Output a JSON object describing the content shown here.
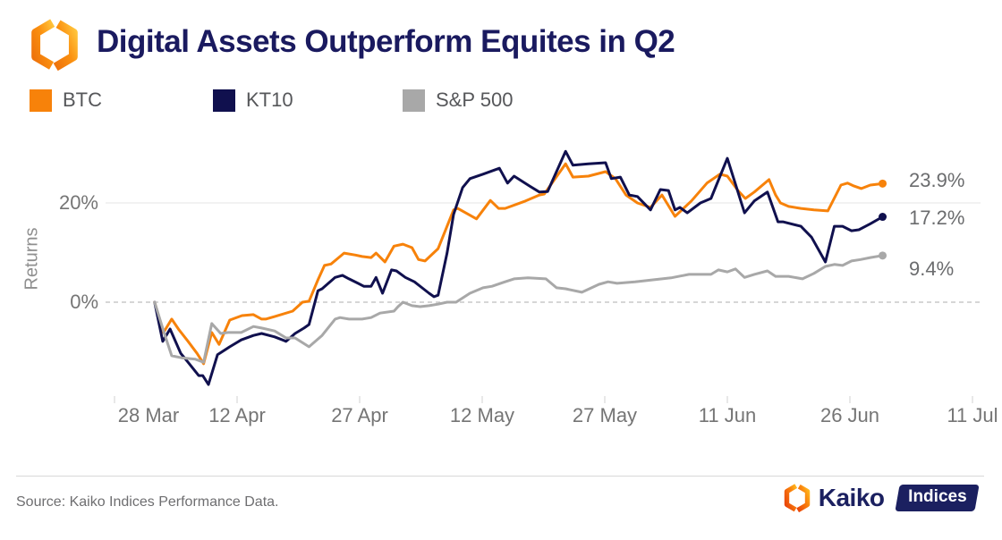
{
  "header": {
    "title": "Digital Assets Outperform Equites in Q2"
  },
  "legend": [
    {
      "label": "BTC",
      "color": "#F7820A"
    },
    {
      "label": "KT10",
      "color": "#10104E"
    },
    {
      "label": "S&P 500",
      "color": "#A8A8A8"
    }
  ],
  "footer": {
    "source": "Source: Kaiko Indices Performance Data.",
    "brand_name": "Kaiko",
    "badge_label": "Indices"
  },
  "colors": {
    "accent_orange": "#F7820A",
    "navy": "#10104E",
    "gray": "#A8A8A8",
    "grid_solid": "#EDEDED",
    "grid_dashed": "#C8C8C8",
    "axis_text": "#757575"
  },
  "chart_data": {
    "type": "line",
    "title": "Digital Assets Outperform Equites in Q2",
    "xlabel": "",
    "ylabel": "Returns",
    "x_unit": "days since 28 Mar",
    "ylim": [
      -20,
      33
    ],
    "grid": "y-only",
    "legend_position": "top",
    "x_ticks": [
      {
        "d": 0,
        "label": "28 Mar"
      },
      {
        "d": 15,
        "label": "12 Apr"
      },
      {
        "d": 30,
        "label": "27 Apr"
      },
      {
        "d": 45,
        "label": "12 May"
      },
      {
        "d": 60,
        "label": "27 May"
      },
      {
        "d": 75,
        "label": "11 Jun"
      },
      {
        "d": 90,
        "label": "26 Jun"
      },
      {
        "d": 105,
        "label": "11 Jul"
      }
    ],
    "y_ticks": [
      {
        "v": 20,
        "label": "20%",
        "style": "solid"
      },
      {
        "v": 0,
        "label": "0%",
        "style": "dashed"
      }
    ],
    "series": [
      {
        "name": "BTC",
        "color": "#F7820A",
        "end_value": 23.9,
        "end_label": "23.9%",
        "end_label_dy": 7,
        "points": [
          [
            4.9,
            0
          ],
          [
            6.0,
            -6.1
          ],
          [
            7.0,
            -3.4
          ],
          [
            7.9,
            -5.6
          ],
          [
            9.0,
            -7.9
          ],
          [
            10.1,
            -10.3
          ],
          [
            10.9,
            -12.4
          ],
          [
            11.9,
            -6.1
          ],
          [
            12.8,
            -8.5
          ],
          [
            14.1,
            -3.6
          ],
          [
            15.6,
            -2.7
          ],
          [
            17.0,
            -2.5
          ],
          [
            18.0,
            -3.4
          ],
          [
            18.5,
            -3.4
          ],
          [
            19.6,
            -2.9
          ],
          [
            21.8,
            -1.8
          ],
          [
            23.0,
            0.0
          ],
          [
            23.8,
            0.2
          ],
          [
            24.9,
            4.5
          ],
          [
            25.7,
            7.4
          ],
          [
            26.5,
            7.7
          ],
          [
            27.6,
            9.2
          ],
          [
            28.1,
            9.9
          ],
          [
            29.5,
            9.5
          ],
          [
            30.3,
            9.2
          ],
          [
            31.4,
            9.0
          ],
          [
            32.0,
            9.9
          ],
          [
            33.1,
            8.1
          ],
          [
            34.2,
            11.3
          ],
          [
            35.3,
            11.7
          ],
          [
            36.4,
            11.0
          ],
          [
            37.2,
            8.6
          ],
          [
            38.0,
            8.3
          ],
          [
            39.6,
            10.8
          ],
          [
            40.7,
            15.3
          ],
          [
            41.5,
            18.6
          ],
          [
            42.0,
            18.9
          ],
          [
            44.3,
            16.8
          ],
          [
            46.0,
            20.5
          ],
          [
            47.0,
            18.9
          ],
          [
            47.8,
            18.9
          ],
          [
            50.3,
            20.4
          ],
          [
            52.0,
            21.6
          ],
          [
            52.6,
            21.8
          ],
          [
            55.2,
            27.9
          ],
          [
            56.1,
            25.2
          ],
          [
            58.0,
            25.4
          ],
          [
            60.1,
            26.3
          ],
          [
            61.3,
            24.9
          ],
          [
            62.6,
            21.6
          ],
          [
            64.0,
            20.0
          ],
          [
            65.6,
            19.1
          ],
          [
            67.0,
            21.6
          ],
          [
            68.6,
            17.3
          ],
          [
            70.6,
            20.4
          ],
          [
            72.5,
            24.0
          ],
          [
            74.1,
            25.8
          ],
          [
            75.0,
            25.4
          ],
          [
            76.3,
            22.5
          ],
          [
            77.2,
            20.9
          ],
          [
            78.3,
            22.2
          ],
          [
            80.1,
            24.7
          ],
          [
            80.9,
            21.6
          ],
          [
            81.5,
            20.0
          ],
          [
            82.5,
            19.3
          ],
          [
            84.0,
            18.9
          ],
          [
            85.6,
            18.6
          ],
          [
            87.3,
            18.4
          ],
          [
            88.9,
            23.6
          ],
          [
            89.7,
            24.0
          ],
          [
            90.5,
            23.4
          ],
          [
            91.4,
            22.9
          ],
          [
            92.5,
            23.6
          ],
          [
            94.0,
            23.9
          ]
        ]
      },
      {
        "name": "KT10",
        "color": "#10104E",
        "end_value": 17.2,
        "end_label": "17.2%",
        "end_label_dy": 7,
        "points": [
          [
            4.9,
            0
          ],
          [
            5.9,
            -7.9
          ],
          [
            6.8,
            -5.4
          ],
          [
            8.1,
            -10.3
          ],
          [
            9.0,
            -12.1
          ],
          [
            10.3,
            -14.8
          ],
          [
            10.8,
            -14.8
          ],
          [
            11.5,
            -16.6
          ],
          [
            12.6,
            -10.6
          ],
          [
            14.1,
            -9.0
          ],
          [
            15.5,
            -7.6
          ],
          [
            17.0,
            -6.7
          ],
          [
            18.0,
            -6.3
          ],
          [
            19.6,
            -7.0
          ],
          [
            21.0,
            -7.9
          ],
          [
            22.1,
            -6.3
          ],
          [
            23.2,
            -5.2
          ],
          [
            23.8,
            -4.5
          ],
          [
            24.9,
            2.3
          ],
          [
            25.4,
            2.7
          ],
          [
            27.0,
            5.0
          ],
          [
            27.9,
            5.4
          ],
          [
            28.7,
            4.7
          ],
          [
            29.8,
            3.8
          ],
          [
            30.5,
            3.2
          ],
          [
            31.4,
            3.2
          ],
          [
            32.0,
            5.0
          ],
          [
            32.8,
            1.8
          ],
          [
            33.9,
            6.5
          ],
          [
            34.5,
            6.3
          ],
          [
            35.6,
            5.0
          ],
          [
            36.7,
            4.1
          ],
          [
            37.8,
            2.7
          ],
          [
            38.5,
            1.8
          ],
          [
            39.1,
            1.1
          ],
          [
            39.6,
            1.4
          ],
          [
            40.7,
            9.9
          ],
          [
            41.5,
            17.7
          ],
          [
            42.6,
            23.1
          ],
          [
            43.5,
            24.9
          ],
          [
            45.1,
            25.8
          ],
          [
            47.1,
            27.0
          ],
          [
            48.1,
            24.0
          ],
          [
            48.9,
            25.4
          ],
          [
            50.8,
            23.4
          ],
          [
            52.0,
            22.2
          ],
          [
            53.0,
            22.3
          ],
          [
            55.2,
            30.4
          ],
          [
            56.1,
            27.6
          ],
          [
            58.0,
            27.9
          ],
          [
            60.1,
            28.1
          ],
          [
            60.8,
            24.9
          ],
          [
            61.9,
            25.2
          ],
          [
            63.0,
            21.6
          ],
          [
            64.0,
            21.3
          ],
          [
            65.6,
            18.6
          ],
          [
            66.8,
            22.7
          ],
          [
            67.8,
            22.5
          ],
          [
            68.6,
            18.6
          ],
          [
            69.2,
            19.1
          ],
          [
            70.1,
            18.0
          ],
          [
            71.7,
            20.0
          ],
          [
            73.0,
            20.9
          ],
          [
            75.0,
            29.0
          ],
          [
            77.1,
            18.0
          ],
          [
            78.3,
            20.4
          ],
          [
            79.9,
            22.2
          ],
          [
            81.2,
            16.2
          ],
          [
            81.8,
            16.2
          ],
          [
            84.0,
            15.3
          ],
          [
            85.3,
            13.1
          ],
          [
            87.0,
            8.1
          ],
          [
            88.1,
            15.3
          ],
          [
            89.1,
            15.3
          ],
          [
            90.2,
            14.4
          ],
          [
            91.1,
            14.6
          ],
          [
            92.5,
            15.8
          ],
          [
            94.0,
            17.2
          ]
        ]
      },
      {
        "name": "S&P 500",
        "color": "#A8A8A8",
        "end_value": 9.4,
        "end_label": "9.4%",
        "end_label_dy": 20,
        "points": [
          [
            4.9,
            0
          ],
          [
            6.0,
            -5.8
          ],
          [
            7.0,
            -10.8
          ],
          [
            8.2,
            -11.2
          ],
          [
            9.9,
            -11.5
          ],
          [
            10.9,
            -12.1
          ],
          [
            11.9,
            -4.3
          ],
          [
            13.0,
            -6.3
          ],
          [
            13.9,
            -6.1
          ],
          [
            15.5,
            -6.1
          ],
          [
            17.0,
            -4.9
          ],
          [
            18.0,
            -5.2
          ],
          [
            19.6,
            -5.8
          ],
          [
            21.0,
            -7.2
          ],
          [
            22.1,
            -7.2
          ],
          [
            23.8,
            -9.0
          ],
          [
            25.4,
            -6.7
          ],
          [
            27.0,
            -3.4
          ],
          [
            27.6,
            -3.1
          ],
          [
            28.7,
            -3.4
          ],
          [
            30.3,
            -3.4
          ],
          [
            31.4,
            -3.1
          ],
          [
            32.5,
            -2.2
          ],
          [
            34.2,
            -1.8
          ],
          [
            34.7,
            -0.9
          ],
          [
            35.3,
            0.0
          ],
          [
            36.4,
            -0.7
          ],
          [
            37.4,
            -0.9
          ],
          [
            38.5,
            -0.7
          ],
          [
            39.6,
            -0.4
          ],
          [
            40.7,
            0.0
          ],
          [
            41.8,
            0.0
          ],
          [
            43.5,
            1.8
          ],
          [
            45.1,
            2.9
          ],
          [
            46.2,
            3.2
          ],
          [
            47.6,
            4.0
          ],
          [
            48.9,
            4.7
          ],
          [
            50.6,
            4.9
          ],
          [
            52.8,
            4.7
          ],
          [
            54.1,
            2.9
          ],
          [
            55.2,
            2.7
          ],
          [
            57.2,
            2.0
          ],
          [
            59.3,
            3.6
          ],
          [
            60.4,
            4.1
          ],
          [
            61.5,
            3.8
          ],
          [
            63.7,
            4.1
          ],
          [
            65.9,
            4.5
          ],
          [
            68.1,
            4.9
          ],
          [
            70.3,
            5.6
          ],
          [
            71.4,
            5.6
          ],
          [
            73.0,
            5.6
          ],
          [
            73.9,
            6.5
          ],
          [
            75.0,
            6.1
          ],
          [
            76.0,
            6.7
          ],
          [
            77.1,
            5.0
          ],
          [
            78.3,
            5.6
          ],
          [
            79.9,
            6.3
          ],
          [
            80.9,
            5.2
          ],
          [
            82.5,
            5.2
          ],
          [
            84.2,
            4.7
          ],
          [
            85.6,
            5.8
          ],
          [
            87.0,
            7.2
          ],
          [
            88.1,
            7.6
          ],
          [
            89.1,
            7.4
          ],
          [
            90.2,
            8.3
          ],
          [
            91.3,
            8.6
          ],
          [
            92.5,
            9.0
          ],
          [
            94.0,
            9.4
          ]
        ]
      }
    ]
  }
}
